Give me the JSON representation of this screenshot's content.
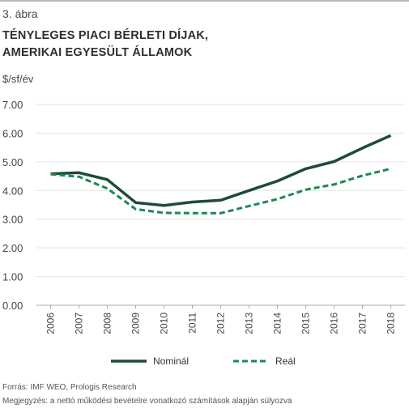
{
  "figure_label": "3. ábra",
  "title_line1": "TÉNYLEGES PIACI BÉRLETI DÍJAK,",
  "title_line2": "AMERIKAI EGYESÜLT ÁLLAMOK",
  "unit_label": "$/sf/év",
  "footnotes": {
    "source": "Forrás: IMF WEO, Prologis Research",
    "note": "Megjegyzés: a nettó működési bevételre vonatkozó számítások alapján súlyozva"
  },
  "colors": {
    "nominal": "#1f4a3a",
    "real": "#1a8a50",
    "axis": "#aaaaaa",
    "grid": "#e3e3e3"
  },
  "chart_data": {
    "type": "line",
    "x": [
      "2006",
      "2007",
      "2008",
      "2009",
      "2010",
      "2011",
      "2012",
      "2013",
      "2014",
      "2015",
      "2016",
      "2017",
      "2018"
    ],
    "series": [
      {
        "name": "Nominál",
        "values": [
          4.58,
          4.62,
          4.38,
          3.58,
          3.48,
          3.6,
          3.66,
          4.0,
          4.33,
          4.76,
          5.01,
          5.48,
          5.92
        ]
      },
      {
        "name": "Reál",
        "values": [
          4.57,
          4.48,
          4.07,
          3.35,
          3.22,
          3.21,
          3.21,
          3.46,
          3.7,
          4.03,
          4.21,
          4.52,
          4.76
        ]
      }
    ],
    "yticks": [
      "7.00",
      "6.00",
      "5.00",
      "4.00",
      "3.00",
      "2.00",
      "1.00",
      "0.00"
    ],
    "ylim": [
      0,
      7
    ],
    "grid": "horizontal",
    "legend_position": "bottom"
  }
}
